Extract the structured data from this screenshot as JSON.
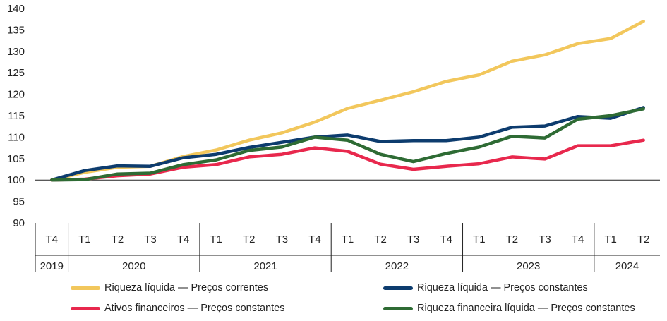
{
  "chart_data": {
    "type": "line",
    "categories": [
      "T4",
      "T1",
      "T2",
      "T3",
      "T4",
      "T1",
      "T2",
      "T3",
      "T4",
      "T1",
      "T2",
      "T3",
      "T4",
      "T1",
      "T2",
      "T3",
      "T4",
      "T1",
      "T2"
    ],
    "years": [
      {
        "label": "2019",
        "start": 0,
        "end": 0
      },
      {
        "label": "2020",
        "start": 1,
        "end": 4
      },
      {
        "label": "2021",
        "start": 5,
        "end": 8
      },
      {
        "label": "2022",
        "start": 9,
        "end": 12
      },
      {
        "label": "2023",
        "start": 13,
        "end": 16
      },
      {
        "label": "2024",
        "start": 17,
        "end": 18
      }
    ],
    "ylim": [
      90,
      140
    ],
    "yticks": [
      "90",
      "95",
      "100",
      "105",
      "110",
      "115",
      "120",
      "125",
      "130",
      "135",
      "140"
    ],
    "baseline": 100,
    "series": [
      {
        "name": "Riqueza líquida — Preços correntes",
        "color": "#f2c75c",
        "values": [
          100,
          101.8,
          103.0,
          103.2,
          105.5,
          107.0,
          109.3,
          111.0,
          113.5,
          116.7,
          118.6,
          120.6,
          123.0,
          124.5,
          127.7,
          129.2,
          131.8,
          133.0,
          137.0
        ]
      },
      {
        "name": "Riqueza líquida — Preços constantes",
        "color": "#0d3c6e",
        "values": [
          100,
          102.2,
          103.3,
          103.2,
          105.2,
          106.0,
          107.6,
          108.8,
          110.0,
          110.5,
          109.0,
          109.2,
          109.2,
          110.0,
          112.3,
          112.6,
          114.8,
          114.4,
          116.9
        ]
      },
      {
        "name": "Ativos financeiros — Preços constantes",
        "color": "#e8284d",
        "values": [
          100,
          100.2,
          101.0,
          101.4,
          103.0,
          103.6,
          105.4,
          106.0,
          107.5,
          106.7,
          103.7,
          102.5,
          103.2,
          103.8,
          105.4,
          104.9,
          108.0,
          108.0,
          109.3
        ]
      },
      {
        "name": "Riqueza financeira líquida — Preços constantes",
        "color": "#2e6b34",
        "values": [
          100,
          100.1,
          101.4,
          101.6,
          103.6,
          104.7,
          106.9,
          107.7,
          110.0,
          109.3,
          106.0,
          104.3,
          106.2,
          107.7,
          110.2,
          109.8,
          114.2,
          115.0,
          116.6
        ]
      }
    ],
    "legend": [
      {
        "label": "Riqueza líquida — Preços correntes",
        "color": "#f2c75c"
      },
      {
        "label": "Riqueza líquida — Preços constantes",
        "color": "#0d3c6e"
      },
      {
        "label": "Ativos financeiros — Preços constantes",
        "color": "#e8284d"
      },
      {
        "label": "Riqueza financeira líquida — Preços constantes",
        "color": "#2e6b34"
      }
    ],
    "grid": false,
    "legend_position": "bottom"
  }
}
